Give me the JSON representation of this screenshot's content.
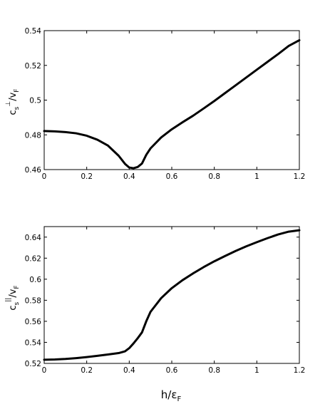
{
  "chart_data": [
    {
      "type": "line",
      "title": "",
      "xlabel": "",
      "ylabel": {
        "main": "c",
        "sub": "s",
        "sup": "⊥",
        "denom": "/v",
        "denom_sub": "F"
      },
      "xlim": [
        0,
        1.2
      ],
      "ylim": [
        0.46,
        0.54
      ],
      "xticks": [
        0,
        0.2,
        0.4,
        0.6,
        0.8,
        1,
        1.2
      ],
      "xtick_labels": [
        "0",
        "0.2",
        "0.4",
        "0.6",
        "0.8",
        "1",
        "1.2"
      ],
      "yticks": [
        0.46,
        0.48,
        0.5,
        0.52,
        0.54
      ],
      "ytick_labels": [
        "0.46",
        "0.48",
        "0.5",
        "0.52",
        "0.54"
      ],
      "grid": false,
      "series": [
        {
          "x": [
            0,
            0.05,
            0.1,
            0.15,
            0.2,
            0.25,
            0.3,
            0.35,
            0.38,
            0.4,
            0.42,
            0.44,
            0.46,
            0.48,
            0.5,
            0.55,
            0.6,
            0.65,
            0.7,
            0.75,
            0.8,
            0.85,
            0.9,
            0.95,
            1.0,
            1.05,
            1.1,
            1.15,
            1.2
          ],
          "y": [
            0.4822,
            0.482,
            0.4816,
            0.4809,
            0.4795,
            0.4772,
            0.4738,
            0.468,
            0.4633,
            0.4612,
            0.4608,
            0.4615,
            0.4635,
            0.4685,
            0.4722,
            0.4785,
            0.4832,
            0.4872,
            0.491,
            0.4952,
            0.4995,
            0.504,
            0.5085,
            0.513,
            0.5175,
            0.522,
            0.5265,
            0.5312,
            0.5345
          ]
        }
      ]
    },
    {
      "type": "line",
      "title": "",
      "xlabel": {
        "main": "h/ε",
        "sub": "F"
      },
      "ylabel": {
        "main": "c",
        "sub": "s",
        "sup": "||",
        "denom": "/v",
        "denom_sub": "F"
      },
      "xlim": [
        0,
        1.2
      ],
      "ylim": [
        0.52,
        0.65
      ],
      "xticks": [
        0,
        0.2,
        0.4,
        0.6,
        0.8,
        1,
        1.2
      ],
      "xtick_labels": [
        "0",
        "0.2",
        "0.4",
        "0.6",
        "0.8",
        "1",
        "1.2"
      ],
      "yticks": [
        0.52,
        0.54,
        0.56,
        0.58,
        0.6,
        0.62,
        0.64
      ],
      "ytick_labels": [
        "0.52",
        "0.54",
        "0.56",
        "0.58",
        "0.6",
        "0.62",
        "0.64"
      ],
      "grid": false,
      "series": [
        {
          "x": [
            0,
            0.05,
            0.1,
            0.15,
            0.2,
            0.25,
            0.3,
            0.35,
            0.38,
            0.4,
            0.42,
            0.44,
            0.46,
            0.48,
            0.5,
            0.55,
            0.6,
            0.65,
            0.7,
            0.75,
            0.8,
            0.85,
            0.9,
            0.95,
            1.0,
            1.05,
            1.1,
            1.15,
            1.2
          ],
          "y": [
            0.5235,
            0.5237,
            0.5242,
            0.525,
            0.526,
            0.5272,
            0.5285,
            0.5298,
            0.5315,
            0.5345,
            0.539,
            0.544,
            0.5495,
            0.56,
            0.569,
            0.582,
            0.5915,
            0.599,
            0.6055,
            0.6115,
            0.617,
            0.622,
            0.6268,
            0.6312,
            0.6352,
            0.639,
            0.6425,
            0.6452,
            0.6465
          ]
        }
      ]
    }
  ]
}
